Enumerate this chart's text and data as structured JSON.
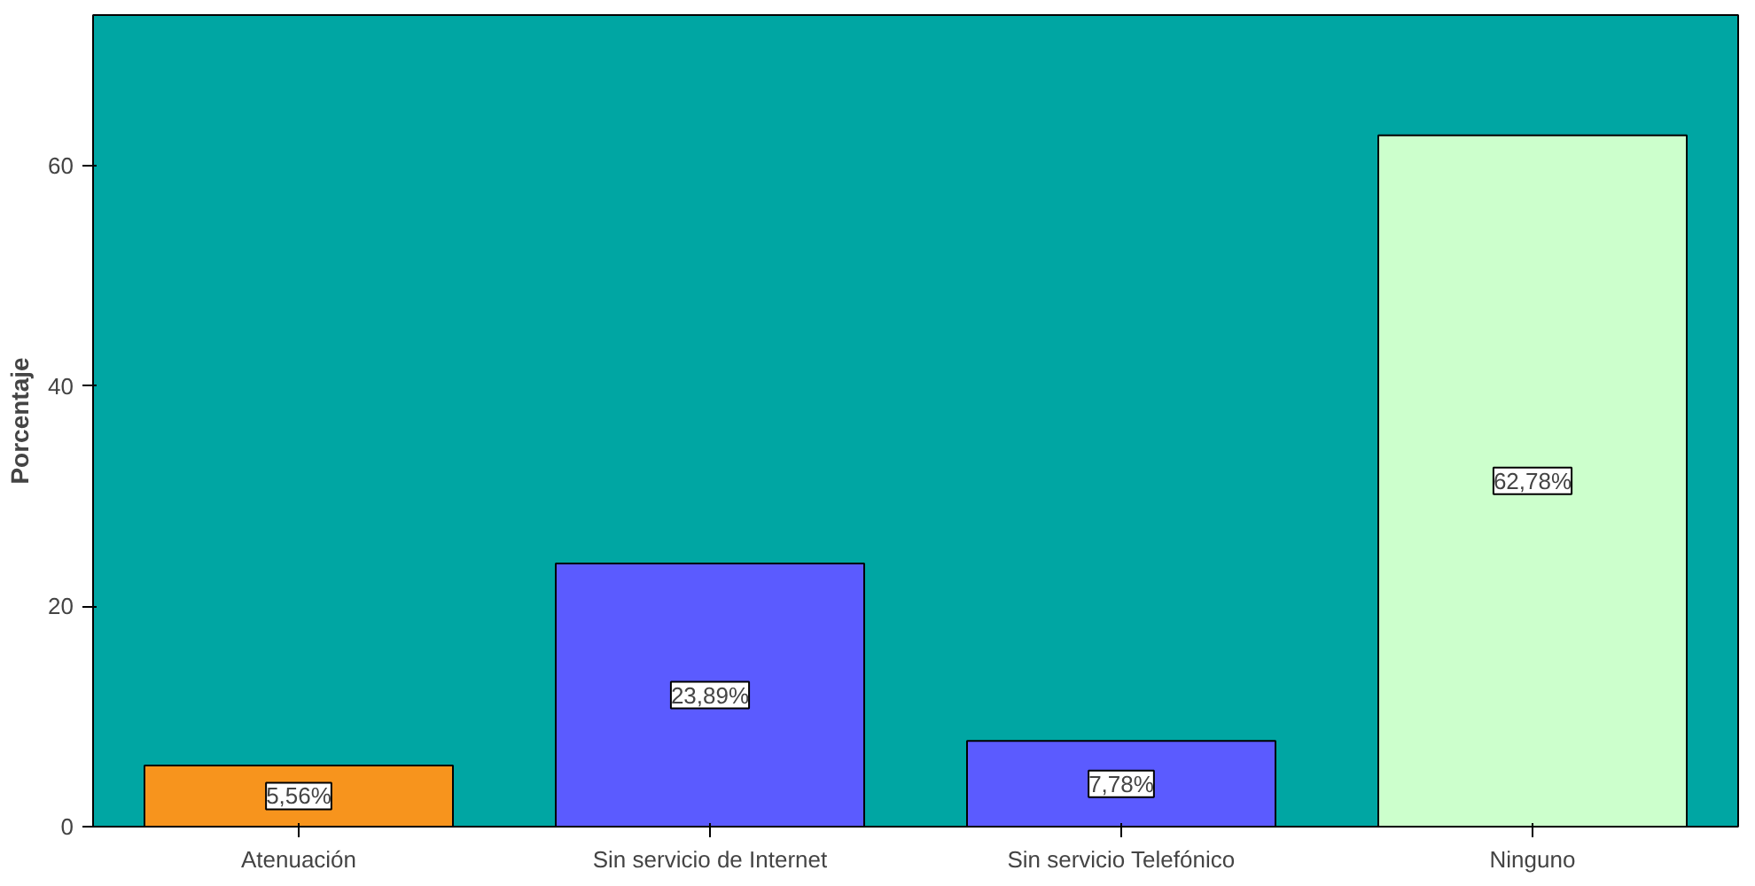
{
  "chart_data": {
    "type": "bar",
    "ylabel": "Porcentaje",
    "categories": [
      "Atenuación",
      "Sin servicio de Internet",
      "Sin servicio Telefónico",
      "Ninguno"
    ],
    "values": [
      5.56,
      23.89,
      7.78,
      62.78
    ],
    "colors": [
      "#f7941d",
      "#5b5bff",
      "#5b5bff",
      "#ccffcc"
    ],
    "value_labels": [
      "5,56%",
      "23,89%",
      "7,78%",
      "62,78%"
    ],
    "ylim": [
      0,
      73.7
    ],
    "yticks": [
      0,
      20,
      40,
      60
    ],
    "grid": false
  }
}
